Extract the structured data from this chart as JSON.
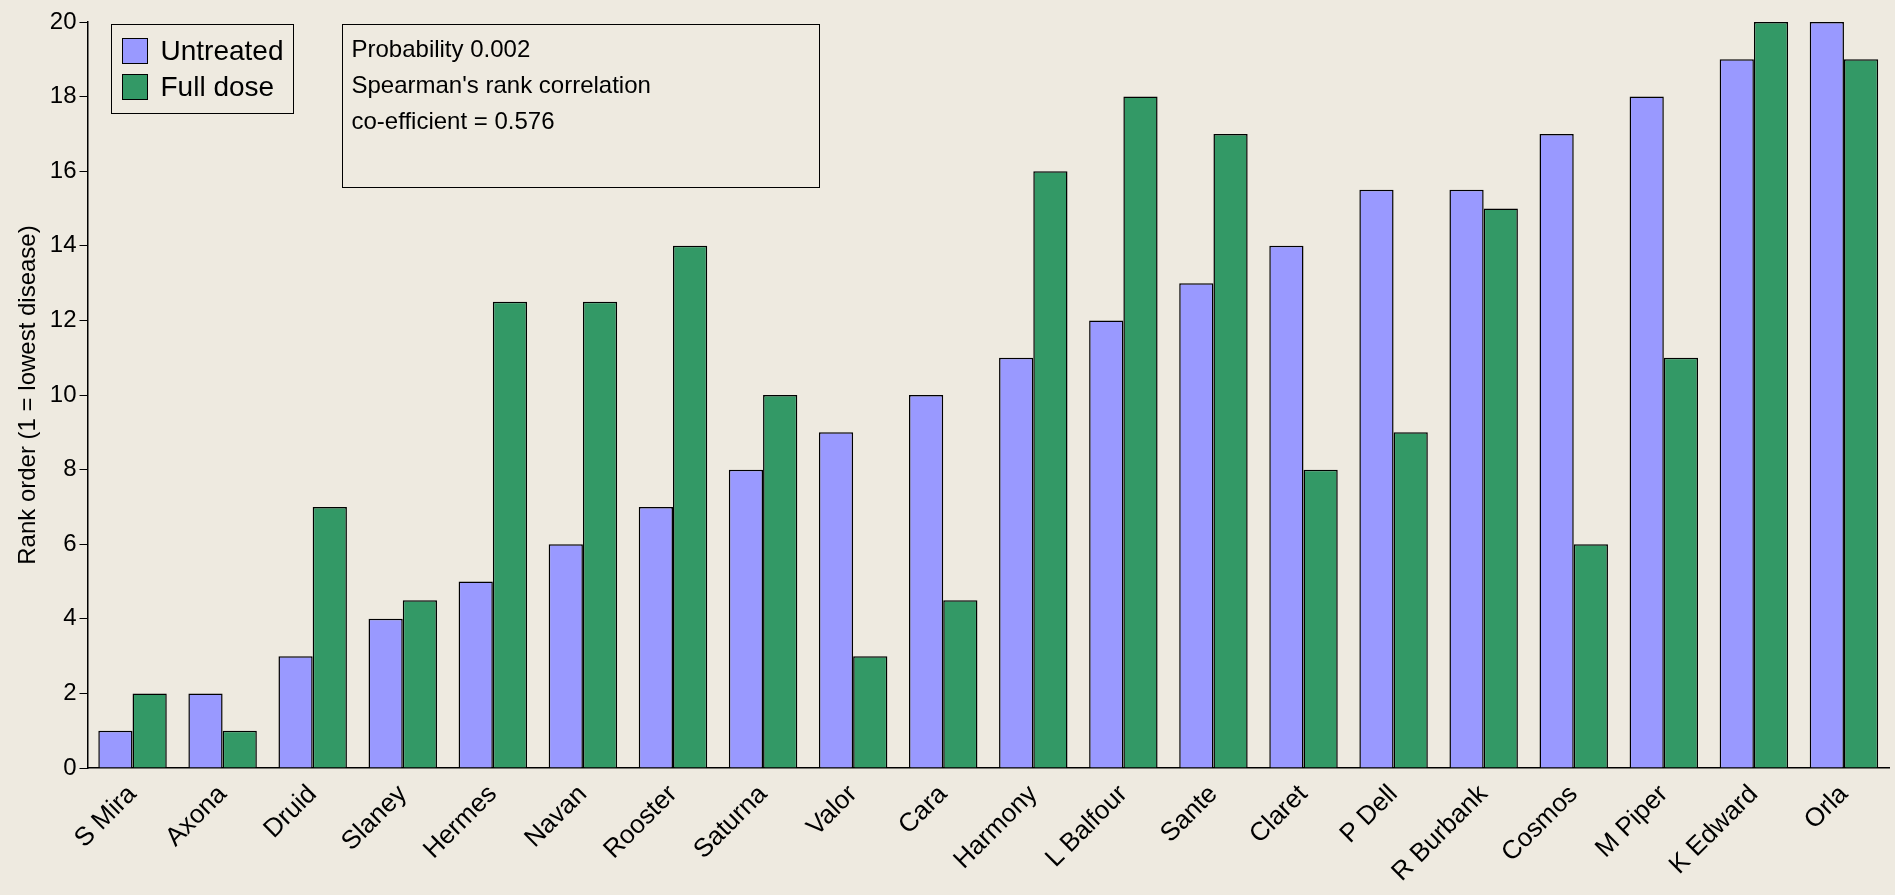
{
  "chart_data": {
    "type": "bar",
    "ylabel": "Rank order (1 = lowest disease)",
    "categories": [
      "S Mira",
      "Axona",
      "Druid",
      "Slaney",
      "Hermes",
      "Navan",
      "Rooster",
      "Saturna",
      "Valor",
      "Cara",
      "Harmony",
      "L Balfour",
      "Sante",
      "Claret",
      "P Dell",
      "R Burbank",
      "Cosmos",
      "M Piper",
      "K Edward",
      "Orla"
    ],
    "series": [
      {
        "name": "Untreated",
        "color": "#9999ff",
        "values": [
          1,
          2,
          3,
          4,
          5,
          6,
          7,
          8,
          9,
          10,
          11,
          12,
          13,
          14,
          15.5,
          15.5,
          17,
          18,
          19,
          20
        ]
      },
      {
        "name": "Full dose",
        "color": "#339966",
        "values": [
          2,
          1,
          7,
          4.5,
          12.5,
          12.5,
          14,
          10,
          3,
          4.5,
          16,
          18,
          17,
          8,
          9,
          15,
          6,
          11,
          20,
          19
        ]
      }
    ],
    "ylim": [
      0,
      20
    ],
    "yticks": [
      0,
      2,
      4,
      6,
      8,
      10,
      12,
      14,
      16,
      18,
      20
    ],
    "grid": false,
    "legend": "top left",
    "annotations": [
      "Probability 0.002",
      "Spearman's rank correlation",
      "co-efficient = 0.576"
    ]
  }
}
